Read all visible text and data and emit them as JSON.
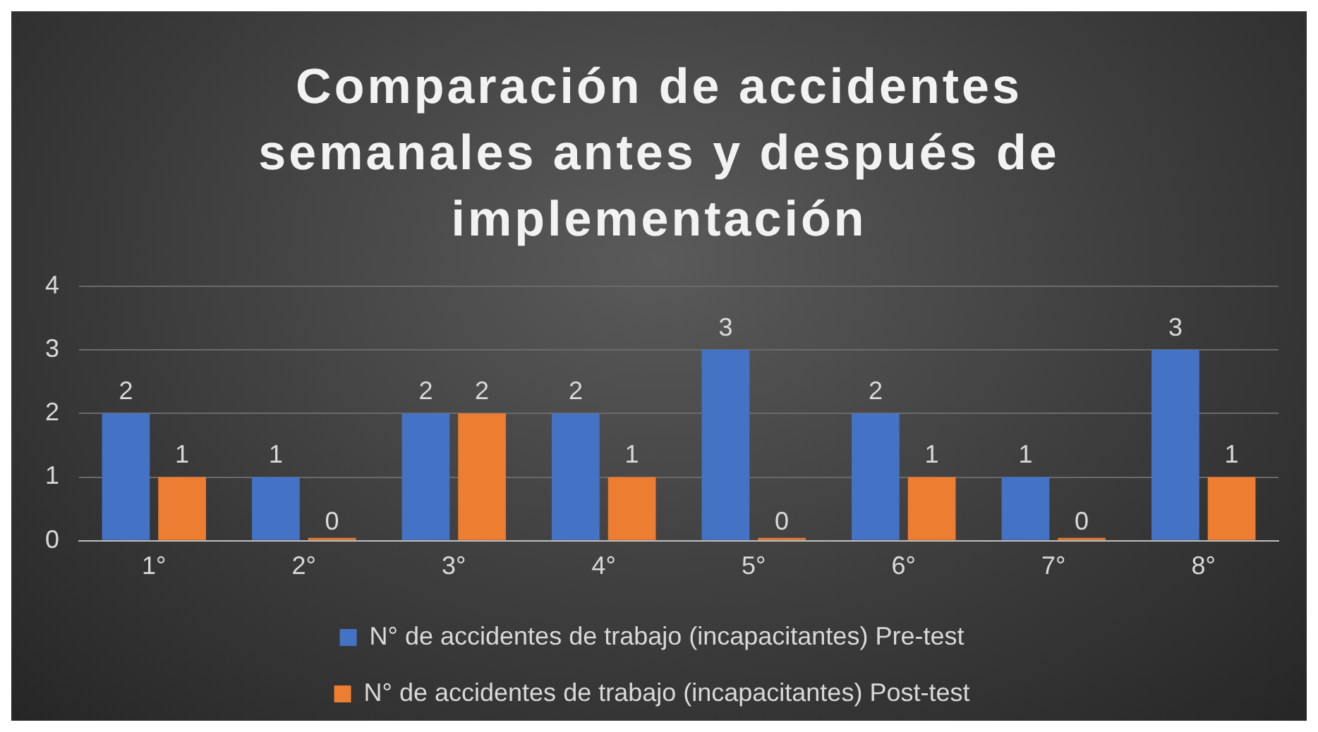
{
  "chart_data": {
    "type": "bar",
    "title": "Comparación de accidentes semanales antes y después de implementación",
    "categories": [
      "1°",
      "2°",
      "3°",
      "4°",
      "5°",
      "6°",
      "7°",
      "8°"
    ],
    "series": [
      {
        "name": "N° de accidentes de trabajo (incapacitantes) Pre-test",
        "color": "#4472c4",
        "values": [
          2,
          1,
          2,
          2,
          3,
          2,
          1,
          3
        ]
      },
      {
        "name": "N° de accidentes de trabajo (incapacitantes) Post-test",
        "color": "#ed7d31",
        "values": [
          1,
          0,
          2,
          1,
          0,
          1,
          0,
          1
        ]
      }
    ],
    "ylim": [
      0,
      4
    ],
    "yticks": [
      0,
      1,
      2,
      3,
      4
    ],
    "grid": "y",
    "legend": "bottom",
    "data_labels": true
  }
}
